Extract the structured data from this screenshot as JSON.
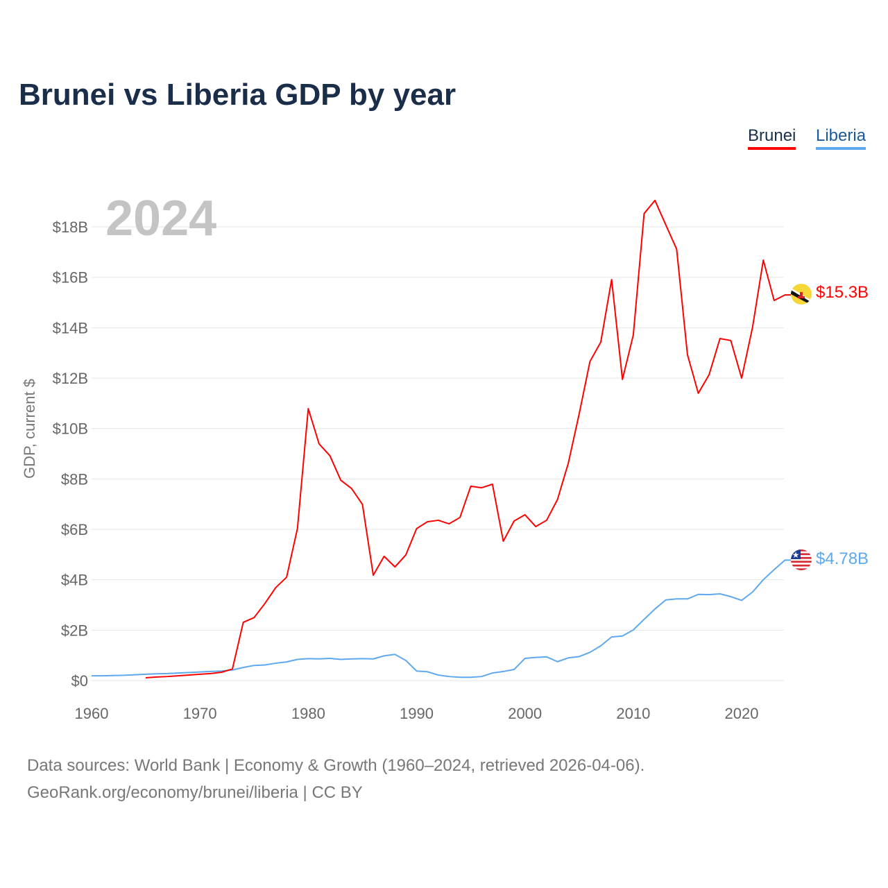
{
  "title": "Brunei vs Liberia GDP by year",
  "legend": [
    {
      "label": "Brunei",
      "color": "#ff0000"
    },
    {
      "label": "Liberia",
      "color": "#5ea8ee"
    }
  ],
  "year_watermark": "2024",
  "footer": {
    "line1": "Data sources: World Bank | Economy & Growth (1960–2024, retrieved 2026-04-06).",
    "line2": "GeoRank.org/economy/brunei/liberia | CC BY"
  },
  "chart_data": {
    "type": "line",
    "title": "Brunei vs Liberia GDP by year",
    "xlabel": "",
    "ylabel": "GDP, current $",
    "xlim": [
      1960,
      2024
    ],
    "ylim": [
      0,
      18
    ],
    "x_ticks": [
      1960,
      1970,
      1980,
      1990,
      2000,
      2010,
      2020
    ],
    "y_ticks": [
      {
        "v": 0,
        "label": "$0"
      },
      {
        "v": 2,
        "label": "$2B"
      },
      {
        "v": 4,
        "label": "$4B"
      },
      {
        "v": 6,
        "label": "$6B"
      },
      {
        "v": 8,
        "label": "$8B"
      },
      {
        "v": 10,
        "label": "$10B"
      },
      {
        "v": 12,
        "label": "$12B"
      },
      {
        "v": 14,
        "label": "$14B"
      },
      {
        "v": 16,
        "label": "$16B"
      },
      {
        "v": 18,
        "label": "$18B"
      }
    ],
    "grid": true,
    "legend_position": "top-right",
    "series": [
      {
        "name": "Brunei",
        "color": "#ff0000",
        "start_year": 1965,
        "end_label": "$15.3B",
        "values": [
          0.11,
          0.14,
          0.16,
          0.19,
          0.22,
          0.25,
          0.28,
          0.33,
          0.46,
          2.31,
          2.5,
          3.06,
          3.69,
          4.1,
          6.03,
          10.79,
          9.39,
          8.92,
          7.95,
          7.62,
          6.99,
          4.18,
          4.93,
          4.51,
          4.98,
          6.03,
          6.3,
          6.36,
          6.22,
          6.47,
          7.71,
          7.65,
          7.79,
          5.53,
          6.33,
          6.58,
          6.11,
          6.36,
          7.18,
          8.62,
          10.57,
          12.66,
          13.43,
          15.91,
          11.95,
          13.71,
          18.53,
          19.05,
          18.08,
          17.12,
          12.93,
          11.4,
          12.14,
          13.57,
          13.49,
          12.0,
          14.0,
          16.68,
          15.08,
          15.3
        ]
      },
      {
        "name": "Liberia",
        "color": "#5ea8ee",
        "start_year": 1960,
        "end_label": "$4.78B",
        "values": [
          0.19,
          0.19,
          0.2,
          0.21,
          0.23,
          0.25,
          0.27,
          0.28,
          0.3,
          0.32,
          0.34,
          0.36,
          0.38,
          0.42,
          0.52,
          0.6,
          0.62,
          0.69,
          0.74,
          0.84,
          0.87,
          0.86,
          0.88,
          0.84,
          0.86,
          0.87,
          0.86,
          0.98,
          1.04,
          0.8,
          0.38,
          0.35,
          0.22,
          0.16,
          0.13,
          0.13,
          0.16,
          0.3,
          0.36,
          0.44,
          0.88,
          0.92,
          0.94,
          0.75,
          0.9,
          0.95,
          1.12,
          1.38,
          1.73,
          1.77,
          2.01,
          2.43,
          2.84,
          3.2,
          3.24,
          3.24,
          3.42,
          3.41,
          3.44,
          3.33,
          3.18,
          3.51,
          4.0,
          4.4,
          4.78
        ]
      }
    ]
  }
}
